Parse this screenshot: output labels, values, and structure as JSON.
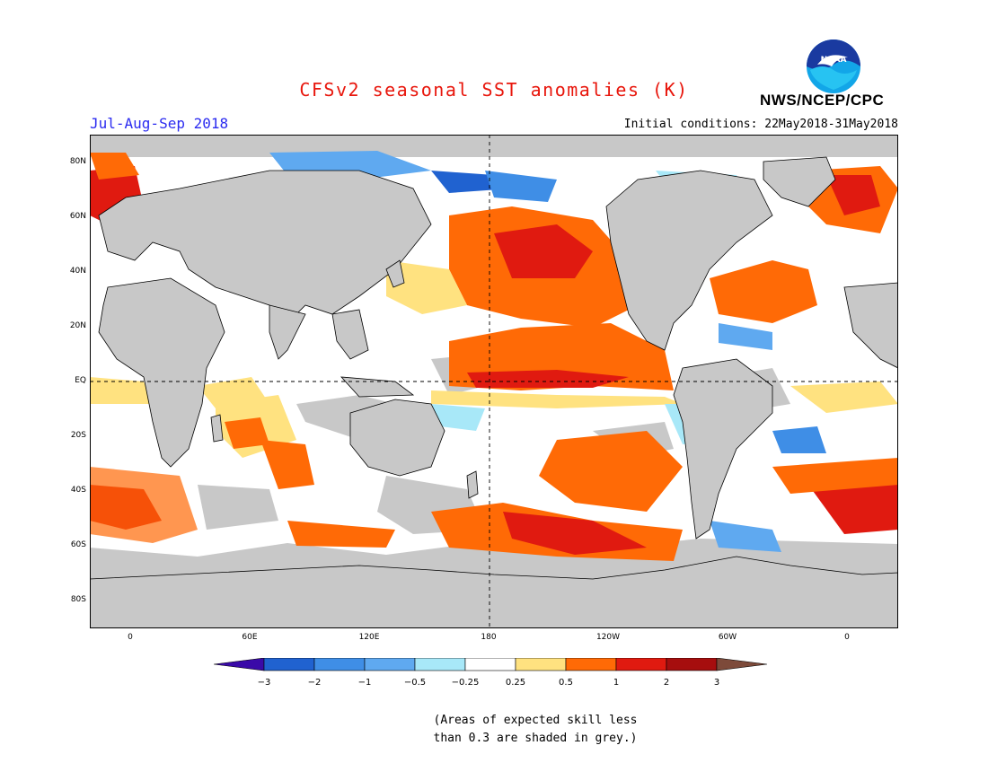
{
  "header": {
    "title": "CFSv2 seasonal SST anomalies (K)",
    "season": "Jul-Aug-Sep 2018",
    "initial_conditions": "Initial conditions: 22May2018-31May2018",
    "organization": "NWS/NCEP/CPC",
    "logo_text": "NOAA"
  },
  "map": {
    "lat_labels": [
      "80N",
      "60N",
      "40N",
      "20N",
      "EQ",
      "20S",
      "40S",
      "60S",
      "80S"
    ],
    "lon_labels": [
      "0",
      "60E",
      "120E",
      "180",
      "120W",
      "60W",
      "0"
    ],
    "masked_color": "#c8c8c8",
    "land_color": "#c8c8c8"
  },
  "colorbar": {
    "tick_labels": [
      "−3",
      "−2",
      "−1",
      "−0.5",
      "−0.25",
      "0.25",
      "0.5",
      "1",
      "2",
      "3"
    ],
    "colors": [
      "#3a0aa8",
      "#2062d0",
      "#3f8ee6",
      "#5fa9f0",
      "#a8e8f8",
      "#ffffff",
      "#ffe280",
      "#ff6a06",
      "#e01a10",
      "#a60e0e",
      "#7d4a3a"
    ]
  },
  "note": {
    "line1": "(Areas of expected skill less",
    "line2": "than 0.3 are shaded in grey.)"
  }
}
